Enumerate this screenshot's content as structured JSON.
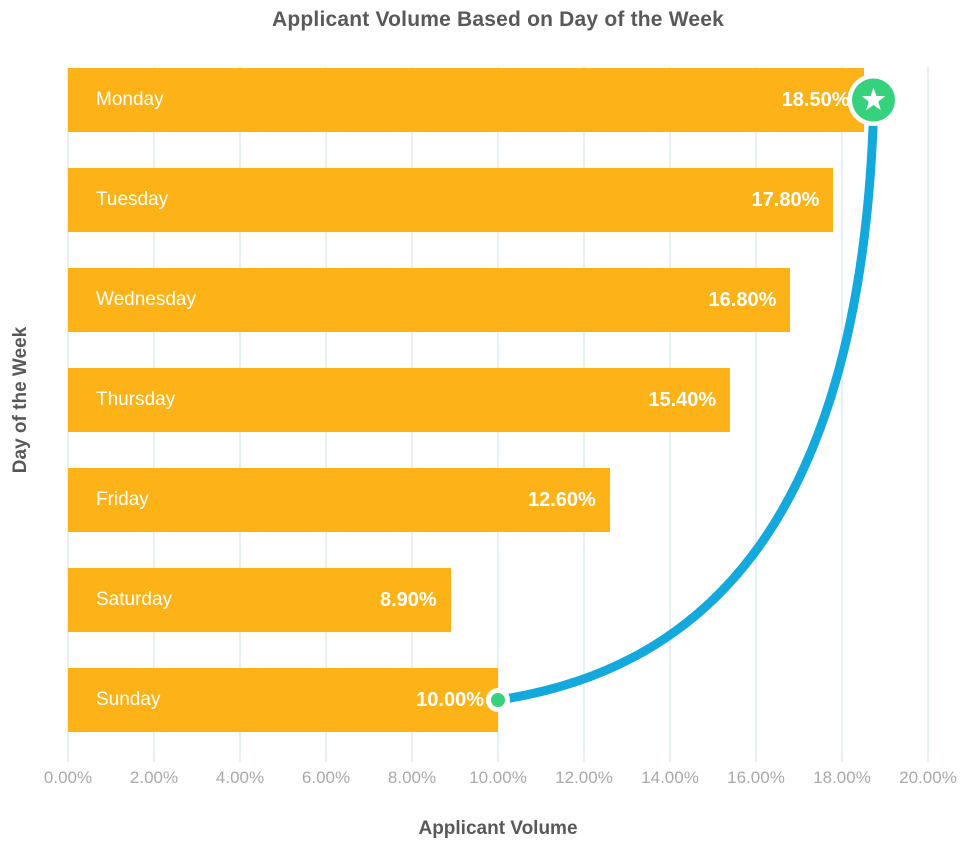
{
  "page": {
    "background": "#FFFFFF"
  },
  "colors": {
    "bar": "#FDB217",
    "line": "#14A9DC",
    "marker": "#36D17C",
    "title_text": "#58595B",
    "bar_label": "#FFFFFF",
    "tick_text": "#A9A9A9",
    "gridline": "#E6EFF4"
  },
  "chart_data": {
    "type": "bar",
    "orientation": "horizontal",
    "title": "Applicant Volume Based on Day of the Week",
    "xlabel": "Applicant Volume",
    "ylabel": "Day of the Week",
    "categories": [
      "Monday",
      "Tuesday",
      "Wednesday",
      "Thursday",
      "Friday",
      "Saturday",
      "Sunday"
    ],
    "series": [
      {
        "name": "Applicant Volume",
        "type": "bar",
        "values": [
          18.5,
          17.8,
          16.8,
          15.4,
          12.6,
          8.9,
          10.0
        ],
        "labels": [
          "18.50%",
          "17.80%",
          "16.80%",
          "15.40%",
          "12.60%",
          "8.90%",
          "10.00%"
        ]
      }
    ],
    "xlim": [
      0,
      20
    ],
    "x_tick_labels": [
      "0.00%",
      "2.00%",
      "4.00%",
      "6.00%",
      "8.00%",
      "10.00%",
      "12.00%",
      "14.00%",
      "16.00%",
      "18.00%",
      "20.00%"
    ],
    "grid": "vertical-only",
    "legend": "none",
    "annotation": {
      "type": "curved-trend-line",
      "from": {
        "category": "Sunday",
        "value": 10.0,
        "marker": "dot"
      },
      "to": {
        "category": "Monday",
        "value": 18.5,
        "marker": "star-badge"
      }
    }
  }
}
